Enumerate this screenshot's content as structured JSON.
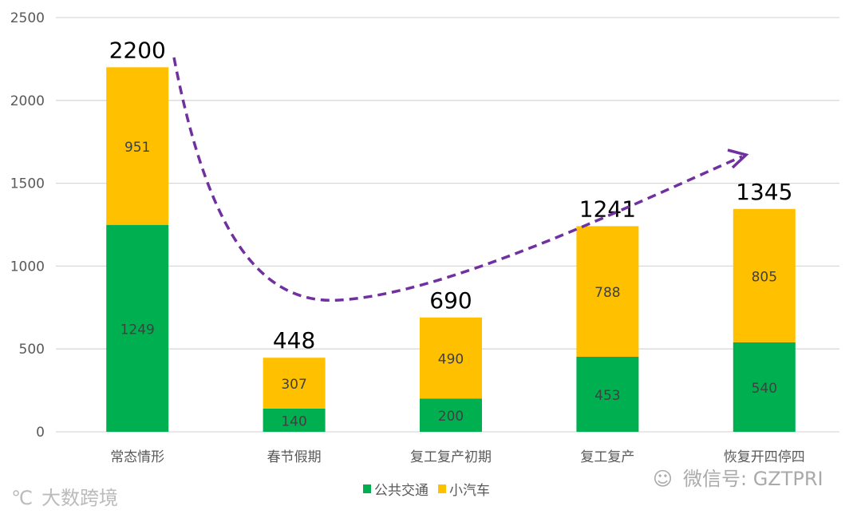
{
  "chart_data": {
    "type": "bar",
    "stacked": true,
    "title": "",
    "xlabel": "",
    "ylabel": "",
    "ylim": [
      0,
      2500
    ],
    "yticks": [
      0,
      500,
      1000,
      1500,
      2000,
      2500
    ],
    "grid": true,
    "legend_position": "bottom",
    "categories": [
      "常态情形",
      "春节假期",
      "复工复产初期",
      "复工复产",
      "恢复开四停四"
    ],
    "series": [
      {
        "name": "公共交通",
        "color": "#00B050",
        "values": [
          1249,
          140,
          200,
          453,
          540
        ]
      },
      {
        "name": "小汽车",
        "color": "#FFC000",
        "values": [
          951,
          307,
          490,
          788,
          805
        ]
      }
    ],
    "totals": [
      2200,
      448,
      690,
      1241,
      1345
    ],
    "annotation_arrow_color": "#7030A0"
  },
  "watermarks": {
    "left": "大数跨境",
    "right": "微信号: GZTPRI"
  }
}
